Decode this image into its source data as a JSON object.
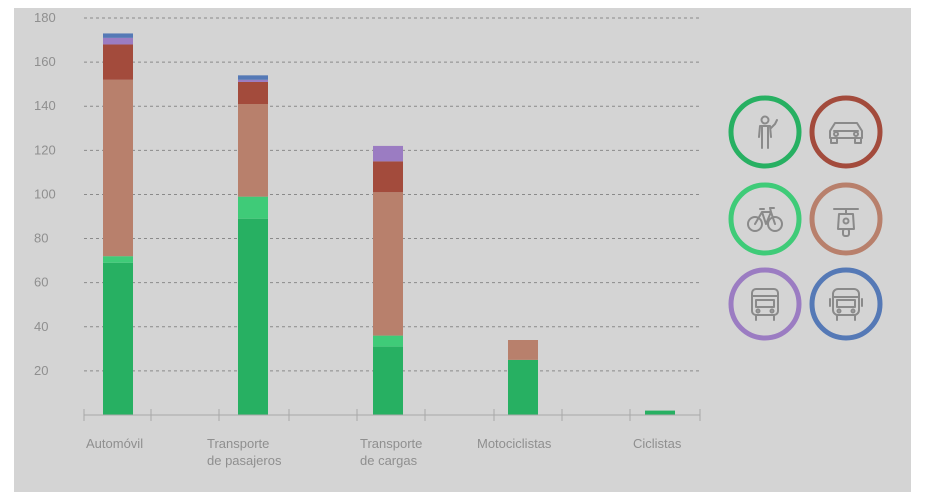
{
  "chart_data": {
    "type": "bar",
    "stacked": true,
    "categories": [
      [
        "Automóvil"
      ],
      [
        "Transporte",
        "de pasajeros"
      ],
      [
        "Transporte",
        "de cargas"
      ],
      [
        "Motociclistas"
      ],
      [
        "Ciclistas"
      ]
    ],
    "series": [
      {
        "icon": "pedestrian-icon",
        "color": "#27b062",
        "values": [
          69,
          89,
          31,
          25,
          2
        ]
      },
      {
        "icon": "bicycle-icon",
        "color": "#3fcb78",
        "values": [
          3,
          10,
          5,
          0,
          0
        ]
      },
      {
        "icon": "motorcycle-icon",
        "color": "#b8806c",
        "values": [
          80,
          42,
          65,
          9,
          0
        ]
      },
      {
        "icon": "car-icon",
        "color": "#a34b3c",
        "values": [
          16,
          10,
          14,
          0,
          0
        ]
      },
      {
        "icon": "truck-icon",
        "color": "#9b7cc2",
        "values": [
          3,
          1,
          7,
          0,
          0
        ]
      },
      {
        "icon": "bus-icon",
        "color": "#5579b6",
        "values": [
          2,
          2,
          0,
          0,
          0
        ]
      }
    ],
    "yticks": [
      20,
      40,
      60,
      80,
      100,
      120,
      140,
      160,
      180
    ],
    "ylim": [
      0,
      180
    ],
    "grid": true,
    "legend": "right",
    "xlabel": "",
    "ylabel": "",
    "title": ""
  },
  "legend": [
    {
      "icon": "pedestrian-icon",
      "color": "#27b062"
    },
    {
      "icon": "car-icon",
      "color": "#a34b3c"
    },
    {
      "icon": "bicycle-icon",
      "color": "#3fcb78"
    },
    {
      "icon": "motorcycle-icon",
      "color": "#b8806c"
    },
    {
      "icon": "truck-icon",
      "color": "#9b7cc2"
    },
    {
      "icon": "bus-icon",
      "color": "#5579b6"
    }
  ]
}
